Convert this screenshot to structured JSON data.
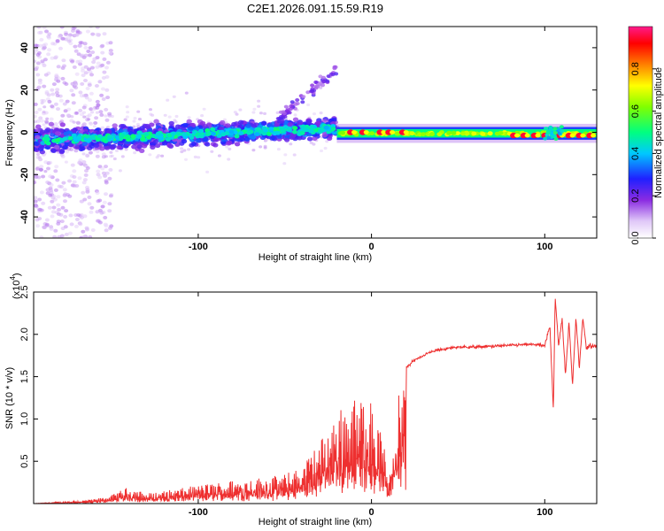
{
  "title": "C2E1.2026.091.15.59.R19",
  "chart_data": [
    {
      "type": "heatmap",
      "xlabel": "Height of straight line (km)",
      "ylabel": "Frequency (Hz)",
      "xlim": [
        -195,
        130
      ],
      "ylim": [
        -50,
        50
      ],
      "xticks": [
        -100,
        0,
        100
      ],
      "xtick_labels": [
        "-100",
        "0",
        "100"
      ],
      "yticks": [
        -40,
        -20,
        0,
        20,
        40
      ],
      "ytick_labels": [
        "-40",
        "-20",
        "0",
        "20",
        "40"
      ],
      "colorbar": {
        "label": "Normalized spectral amplitude",
        "range": [
          0,
          1
        ],
        "ticks": [
          0.0,
          0.2,
          0.4,
          0.6,
          0.8
        ],
        "tick_labels": [
          "0.0",
          "0.2",
          "0.4",
          "0.6",
          "0.8"
        ]
      }
    },
    {
      "type": "line",
      "xlabel": "Height of straight line (km)",
      "ylabel": "SNR (10 * v/v)",
      "scale_label": "(x10",
      "scale_exp": "4",
      "scale_close": ")",
      "xlim": [
        -195,
        130
      ],
      "ylim": [
        0,
        2.5
      ],
      "xticks": [
        -100,
        0,
        100
      ],
      "xtick_labels": [
        "-100",
        "0",
        "100"
      ],
      "yticks": [
        0.5,
        1.0,
        1.5,
        2.0,
        2.5
      ],
      "ytick_labels": [
        "0.5",
        "1.0",
        "1.5",
        "2.0",
        "2.5"
      ],
      "color": "#ee3030",
      "series": [
        {
          "name": "SNR",
          "x": [
            -195,
            -180,
            -160,
            -150,
            -140,
            -130,
            -120,
            -110,
            -100,
            -90,
            -80,
            -70,
            -60,
            -50,
            -40,
            -35,
            -30,
            -25,
            -20,
            -15,
            -12,
            -10,
            -8,
            -5,
            -2,
            0,
            2,
            5,
            8,
            10,
            12,
            15,
            18,
            20,
            25,
            30,
            35,
            40,
            50,
            60,
            70,
            80,
            90,
            95,
            100,
            103,
            105,
            106,
            108,
            110,
            112,
            114,
            116,
            118,
            120,
            122,
            124,
            126,
            130
          ],
          "values": [
            0.0,
            0.02,
            0.05,
            0.1,
            0.2,
            0.12,
            0.15,
            0.18,
            0.22,
            0.25,
            0.28,
            0.3,
            0.32,
            0.35,
            0.45,
            0.6,
            0.75,
            0.9,
            1.1,
            1.2,
            1.3,
            1.25,
            1.2,
            1.3,
            1.35,
            1.2,
            1.1,
            0.9,
            0.6,
            0.3,
            0.8,
            1.2,
            1.5,
            1.6,
            1.7,
            1.75,
            1.8,
            1.82,
            1.85,
            1.85,
            1.86,
            1.87,
            1.88,
            1.88,
            1.86,
            2.1,
            1.1,
            2.45,
            1.85,
            2.2,
            1.5,
            2.15,
            1.4,
            2.2,
            1.6,
            2.2,
            1.85,
            1.86,
            1.86
          ]
        }
      ]
    }
  ]
}
